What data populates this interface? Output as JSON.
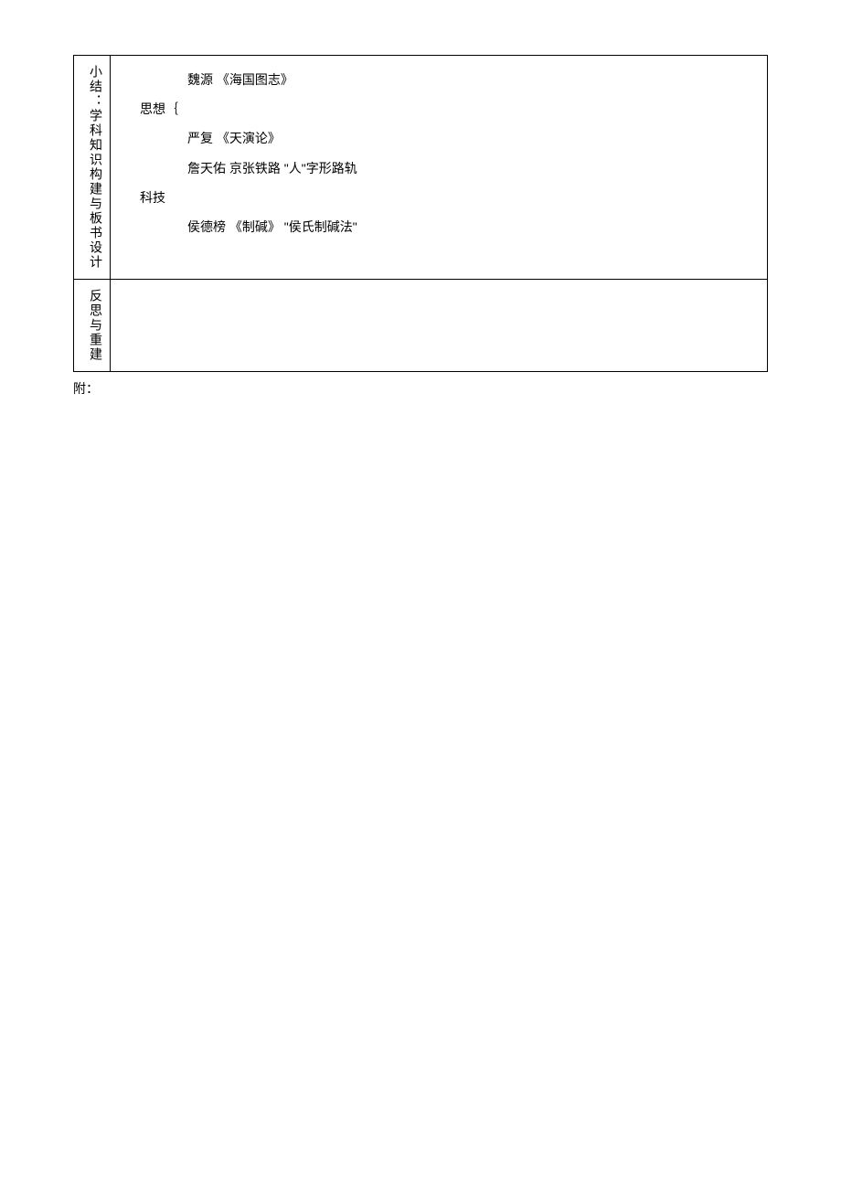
{
  "table": {
    "row1": {
      "label": "小结：学科知识构建与板书设计",
      "content": {
        "line1": "魏源  《海国图志》",
        "header1": "思想｛",
        "line2": "严复  《天演论》",
        "line3": "詹天佑  京张铁路  \"人\"字形路轨",
        "header2": "科技",
        "line4": "侯德榜  《制碱》  \"侯氏制碱法\""
      }
    },
    "row2": {
      "label": "反思与重建"
    }
  },
  "footer": "附："
}
